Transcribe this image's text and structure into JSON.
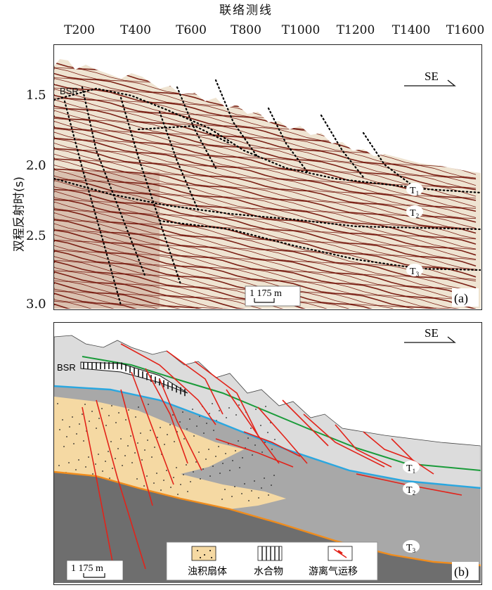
{
  "top_axis": {
    "title": "联络测线",
    "ticks": [
      "T200",
      "T400",
      "T600",
      "T800",
      "T1000",
      "T1200",
      "T1400",
      "T1600"
    ]
  },
  "left_axis": {
    "title": "双程反射时(s)",
    "ticks": [
      "1.5",
      "2.0",
      "2.5",
      "3.0"
    ]
  },
  "panel_a": {
    "label": "(a)",
    "direction": "SE",
    "bsr_label": "BSR",
    "horizons": [
      "T1",
      "T2",
      "T3"
    ],
    "scale_bar": "1 175 m",
    "colors": {
      "seismic_dark": "#7a1f14",
      "seismic_light": "#efe4d2",
      "interpretation": "#000000"
    }
  },
  "panel_b": {
    "label": "(b)",
    "direction": "SE",
    "bsr_label": "BSR",
    "horizons": [
      "T1",
      "T2",
      "T3"
    ],
    "scale_bar": "1 175 m",
    "legend": [
      {
        "label": "浊积扇体",
        "icon": "dotted-yellow-swatch"
      },
      {
        "label": "水合物",
        "icon": "vertical-bars-swatch"
      },
      {
        "label": "游离气运移",
        "icon": "red-arrow-line"
      }
    ],
    "colors": {
      "turbidite": "#f5d9a3",
      "fault": "#e2231a",
      "t1": "#1a9b3a",
      "t2": "#2aa7e0",
      "t3": "#f08c1c",
      "basement": "#6e6e6e",
      "middle": "#a9a9a9",
      "upper": "#d9d9d9"
    }
  }
}
